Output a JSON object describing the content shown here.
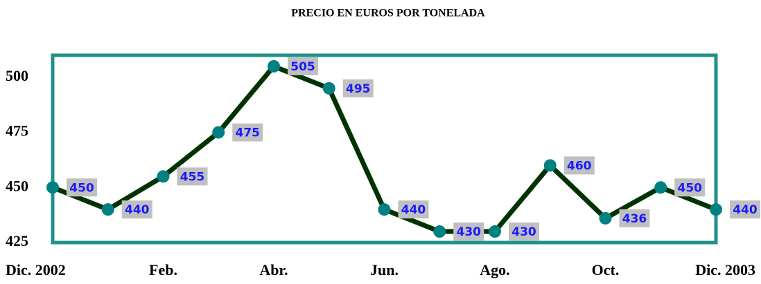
{
  "chart_data": {
    "type": "line",
    "title": "PRECIO EN EUROS POR TONELADA",
    "categories": [
      "Dic. 2002",
      null,
      "Feb.",
      null,
      "Abr.",
      null,
      "Jun.",
      null,
      "Ago.",
      null,
      "Oct.",
      null,
      "Dic. 2003"
    ],
    "series": [
      {
        "name": "Precio",
        "color": "#003300",
        "marker_color": "#008080",
        "values": [
          450,
          440,
          455,
          475,
          505,
          495,
          440,
          430,
          430,
          460,
          436,
          450,
          440
        ]
      }
    ],
    "ylim": [
      425,
      510
    ],
    "yticks": [
      425,
      450,
      475,
      500
    ],
    "frame_color": "#20908a"
  }
}
